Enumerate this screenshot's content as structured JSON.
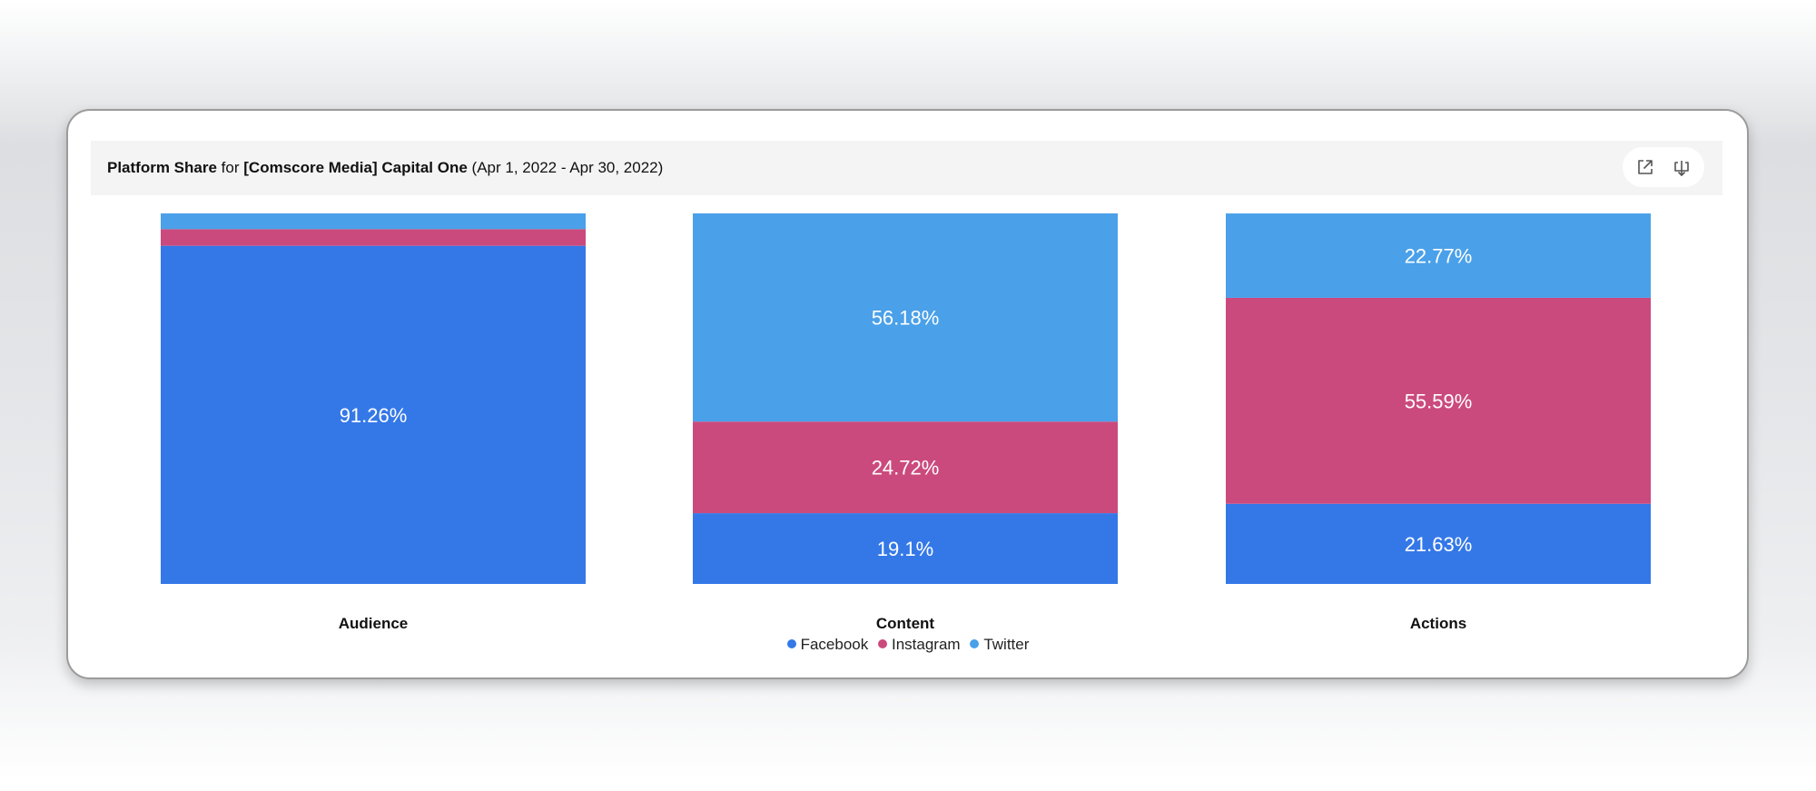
{
  "header": {
    "title_strong": "Platform Share",
    "title_for": "for",
    "title_account": "[Comscore Media] Capital One",
    "title_range": "(Apr 1, 2022 - Apr 30, 2022)",
    "icons": [
      "external-link-icon",
      "download-icon"
    ]
  },
  "colors": {
    "Facebook": "#3478e8",
    "Instagram": "#cb4a7d",
    "Twitter": "#4aa0e9"
  },
  "legend": {
    "facebook": "Facebook",
    "instagram": "Instagram",
    "twitter": "Twitter"
  },
  "chart_data": {
    "type": "bar",
    "stacked": true,
    "normalized": true,
    "categories": [
      "Audience",
      "Content",
      "Actions"
    ],
    "series": [
      {
        "name": "Facebook",
        "values": [
          91.26,
          19.1,
          21.63
        ],
        "labels": [
          "91.26%",
          "19.1%",
          "21.63%"
        ]
      },
      {
        "name": "Instagram",
        "values": [
          4.5,
          24.72,
          55.59
        ],
        "labels": [
          "",
          "24.72%",
          "55.59%"
        ]
      },
      {
        "name": "Twitter",
        "values": [
          4.24,
          56.18,
          22.77
        ],
        "labels": [
          "",
          "56.18%",
          "22.77%"
        ]
      }
    ],
    "ylim": [
      0,
      100
    ],
    "legend_position": "bottom-center",
    "grid": false
  }
}
